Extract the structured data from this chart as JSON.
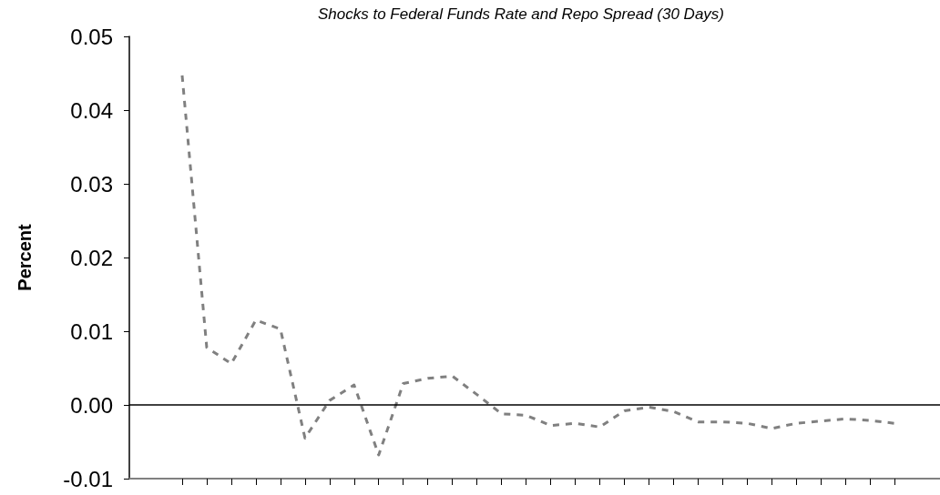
{
  "chart_data": {
    "type": "line",
    "subtitle": "Shocks to Federal Funds Rate and Repo Spread (30 Days)",
    "ylabel": "Percent",
    "categories": [
      null,
      null,
      null,
      null,
      null,
      null,
      null,
      null,
      null,
      null,
      null,
      null,
      null,
      null,
      null,
      null,
      null,
      null,
      null,
      null,
      null,
      null,
      null,
      null,
      null,
      null,
      null,
      null,
      null,
      null
    ],
    "series": [
      {
        "color": "#808080",
        "values": [
          0.0447,
          0.0078,
          0.0056,
          0.0115,
          0.0103,
          -0.0045,
          0.0006,
          0.0027,
          -0.0068,
          0.0029,
          0.0036,
          0.0039,
          0.0014,
          -0.0012,
          -0.0014,
          -0.0028,
          -0.0025,
          -0.003,
          -0.0008,
          -0.0003,
          -0.0009,
          -0.0023,
          -0.0023,
          -0.0025,
          -0.0032,
          -0.0025,
          -0.0022,
          -0.0019,
          -0.0021,
          -0.0025
        ]
      }
    ],
    "ylim": [
      -0.01,
      0.05
    ],
    "yticks": [
      -0.01,
      {
        "value": 0,
        "label": "0.00"
      },
      0.01,
      0.02,
      0.03,
      0.04,
      0.05
    ],
    "ref_lines": [
      {
        "axis": "y",
        "value": 0,
        "color": "#000000",
        "line_style": "solid"
      }
    ],
    "line_style": "dashed",
    "marker": "none",
    "grid": false,
    "legend": false,
    "tick_labels": "y"
  }
}
